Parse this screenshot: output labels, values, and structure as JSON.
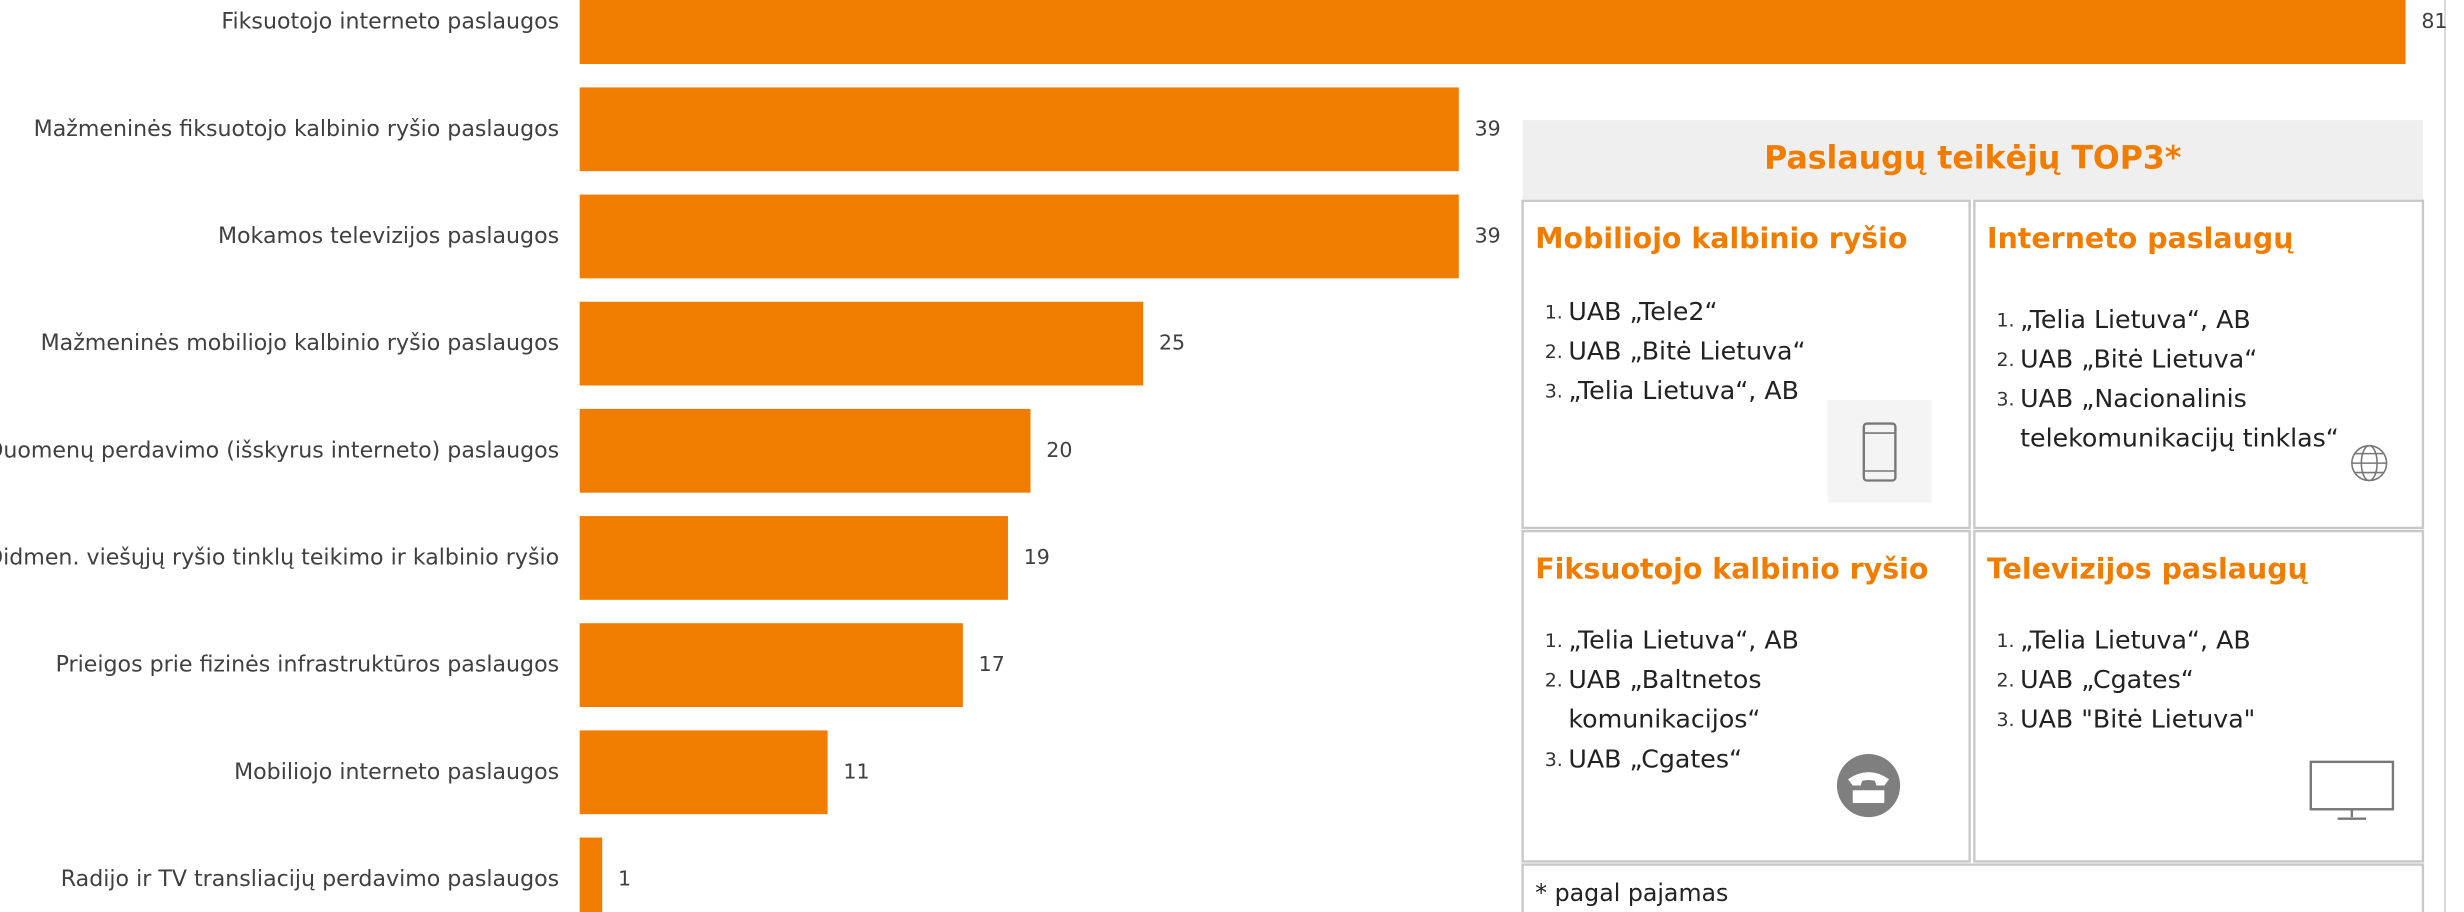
{
  "chart_data": {
    "type": "bar",
    "orientation": "horizontal",
    "color": "#f07d00",
    "categories": [
      "Fiksuotojo interneto paslaugos",
      "Mažmeninės fiksuotojo kalbinio ryšio paslaugos",
      "Mokamos televizijos paslaugos",
      "Mažmeninės mobiliojo kalbinio ryšio paslaugos",
      "Duomenų perdavimo (išskyrus interneto) paslaugos",
      "Didmen. viešųjų ryšio tinklų teikimo ir kalbinio ryšio",
      "Prieigos prie fizinės infrastruktūros paslaugos",
      "Mobiliojo interneto paslaugos",
      "Radijo ir TV transliacijų perdavimo paslaugos"
    ],
    "values": [
      81,
      39,
      39,
      25,
      20,
      19,
      17,
      11,
      1
    ],
    "xlim": [
      0,
      81
    ]
  },
  "panel": {
    "title": "Paslaugų teikėjų TOP3*",
    "cells": [
      {
        "heading": "Mobiliojo kalbinio ryšio",
        "items": [
          {
            "number": "1.",
            "lines": [
              "UAB „Tele2“"
            ]
          },
          {
            "number": "2.",
            "lines": [
              "UAB „Bitė Lietuva“"
            ]
          },
          {
            "number": "3.",
            "lines": [
              "„Telia Lietuva“, AB"
            ]
          }
        ]
      },
      {
        "heading": "Interneto paslaugų",
        "items": [
          {
            "number": "1.",
            "lines": [
              "„Telia Lietuva“, AB"
            ]
          },
          {
            "number": "2.",
            "lines": [
              "UAB „Bitė Lietuva“"
            ]
          },
          {
            "number": "3.",
            "lines": [
              "UAB „Nacionalinis",
              "telekomunikacijų tinklas“"
            ]
          }
        ]
      },
      {
        "heading": "Fiksuotojo kalbinio ryšio",
        "items": [
          {
            "number": "1.",
            "lines": [
              "„Telia Lietuva“, AB"
            ]
          },
          {
            "number": "2.",
            "lines": [
              "UAB „Baltnetos",
              "komunikacijos“"
            ]
          },
          {
            "number": "3.",
            "lines": [
              "UAB „Cgates“"
            ]
          }
        ]
      },
      {
        "heading": "Televizijos paslaugų",
        "items": [
          {
            "number": "1.",
            "lines": [
              "„Telia Lietuva“, AB"
            ]
          },
          {
            "number": "2.",
            "lines": [
              "UAB „Cgates“"
            ]
          },
          {
            "number": "3.",
            "lines": [
              "UAB \"Bitė Lietuva\""
            ]
          }
        ]
      }
    ],
    "footnote": "* pagal pajamas"
  }
}
